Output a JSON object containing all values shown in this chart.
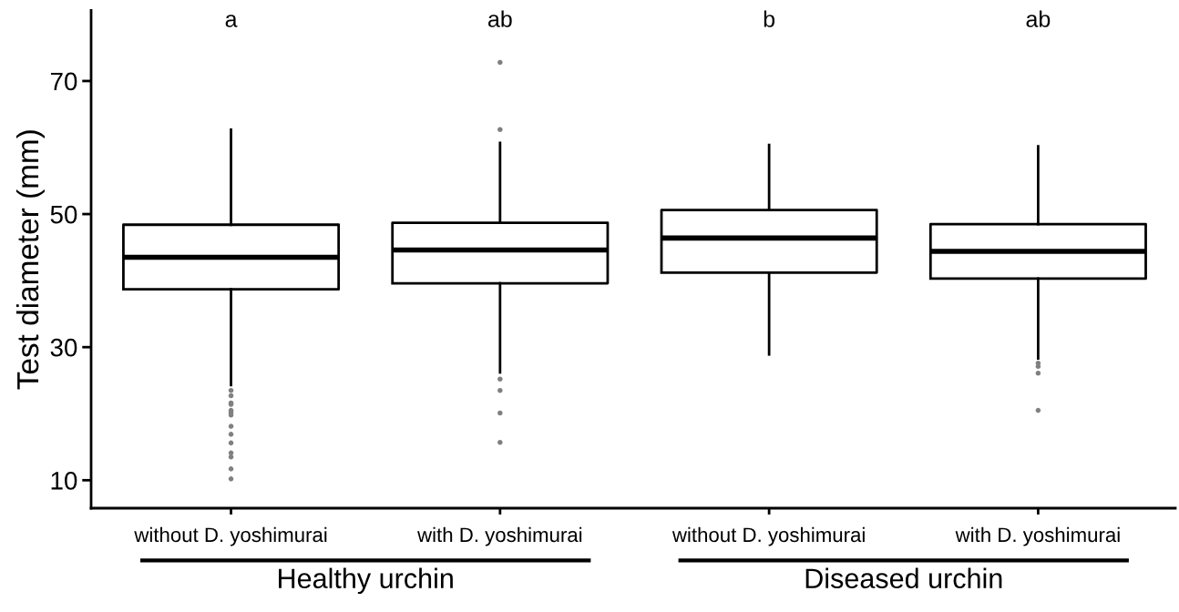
{
  "chart_data": {
    "type": "box",
    "ylabel": "Test diameter (mm)",
    "categories": [
      "without D. yoshimurai",
      "with D. yoshimurai",
      "without D. yoshimurai",
      "with D. yoshimurai"
    ],
    "ylim": [
      5.8,
      80.6
    ],
    "yticks": [
      10,
      30,
      50,
      70
    ],
    "grid": false,
    "boxes": [
      {
        "low": 24.3,
        "q1": 38.7,
        "median": 43.5,
        "q3": 48.4,
        "high": 62.7,
        "outliers": [
          23.5,
          22.7,
          21.6,
          21.4,
          20.5,
          20.2,
          19.8,
          18.1,
          16.9,
          15.6,
          14.1,
          13.5,
          11.7,
          10.2
        ]
      },
      {
        "low": 26.2,
        "q1": 39.6,
        "median": 44.6,
        "q3": 48.7,
        "high": 60.7,
        "outliers": [
          72.8,
          62.7,
          25.2,
          23.5,
          20.1,
          15.7
        ]
      },
      {
        "low": 28.9,
        "q1": 41.2,
        "median": 46.4,
        "q3": 50.6,
        "high": 60.4
      },
      {
        "low": 28.3,
        "q1": 40.3,
        "median": 44.4,
        "q3": 48.5,
        "high": 60.2,
        "outliers": [
          27.6,
          27.1,
          26.1,
          20.5
        ]
      }
    ],
    "color": "#000000",
    "annotations": [
      "a",
      "ab",
      "b",
      "ab",
      "Healthy urchin",
      "Diseased urchin"
    ]
  }
}
